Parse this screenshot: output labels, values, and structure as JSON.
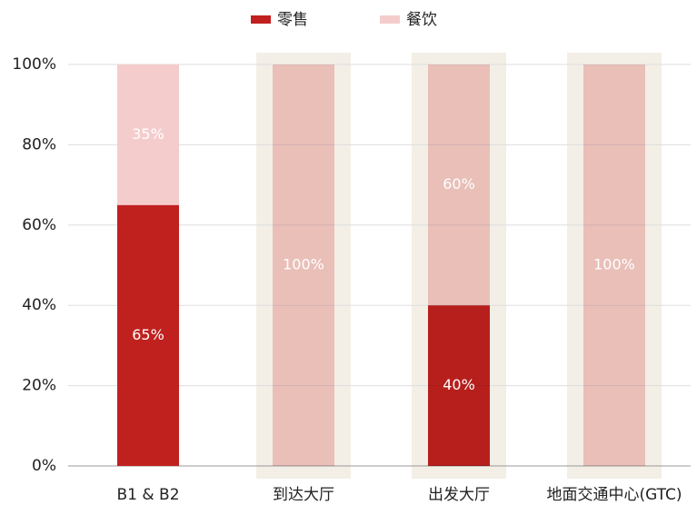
{
  "chart_data": {
    "type": "stacked_bar",
    "categories": [
      "B1 & B2",
      "到达大厅",
      "出发大厅",
      "地面交通中心(GTC)"
    ],
    "series": [
      {
        "name": "零售",
        "color": "#c0211f",
        "values": [
          65,
          0,
          40,
          0
        ],
        "value_labels": [
          "65%",
          null,
          "40%",
          null
        ]
      },
      {
        "name": "餐饮",
        "color": "#f5cccc",
        "values": [
          35,
          100,
          60,
          100
        ],
        "value_labels": [
          "35%",
          "100%",
          "60%",
          "100%"
        ]
      }
    ],
    "highlighted": [
      false,
      true,
      true,
      true
    ],
    "highlight_color": "#f3efe6",
    "ylim": [
      0,
      100
    ],
    "yticks": [
      {
        "value": 0,
        "label": "0%"
      },
      {
        "value": 20,
        "label": "20%"
      },
      {
        "value": 40,
        "label": "40%"
      },
      {
        "value": 60,
        "label": "60%"
      },
      {
        "value": 80,
        "label": "80%"
      },
      {
        "value": 100,
        "label": "100%"
      }
    ],
    "grid": true,
    "legend": "top"
  }
}
